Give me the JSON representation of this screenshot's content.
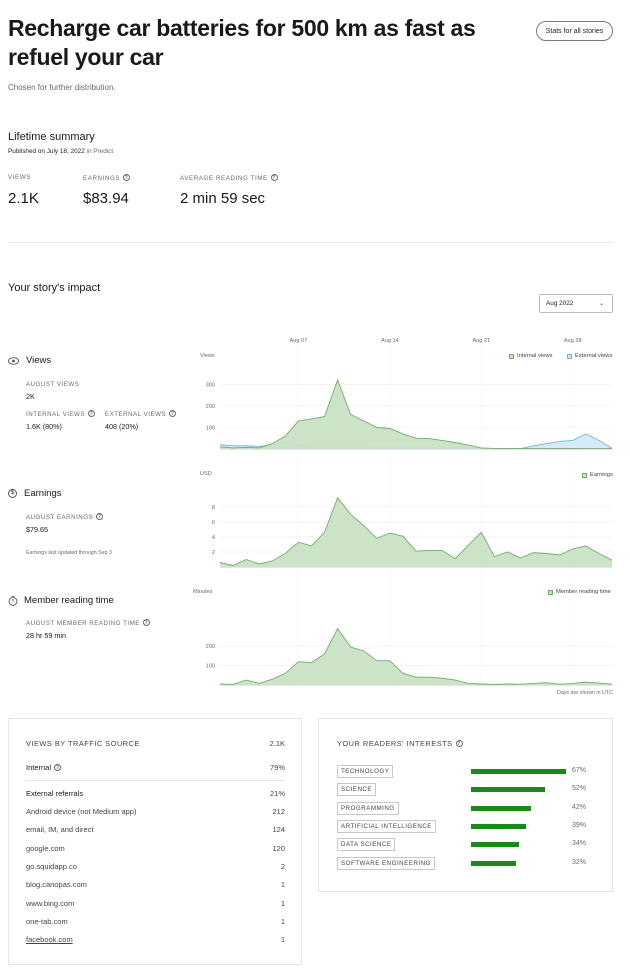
{
  "header": {
    "title": "Recharge car batteries for 500 km as fast as refuel your car",
    "subtitle": "Chosen for further distribution.",
    "stats_button": "Stats for all stories"
  },
  "summary": {
    "heading": "Lifetime summary",
    "published": "Published on July 18, 2022",
    "published_in": "in Predict",
    "views_label": "VIEWS",
    "views_value": "2.1K",
    "earnings_label": "EARNINGS",
    "earnings_value": "$83.94",
    "reading_label": "AVERAGE READING TIME",
    "reading_value": "2 min 59 sec"
  },
  "impact": {
    "heading": "Your story's impact",
    "month_select": "Aug 2022",
    "x_ticks": [
      "Aug 07",
      "Aug 14",
      "Aug 21",
      "Aug 28"
    ],
    "footer_note": "Days are shown in UTC"
  },
  "views": {
    "name": "Views",
    "month_label": "AUGUST VIEWS",
    "month_value": "2K",
    "internal_label": "INTERNAL VIEWS",
    "internal_value": "1.6K (80%)",
    "external_label": "EXTERNAL VIEWS",
    "external_value": "408 (20%)"
  },
  "earnings": {
    "name": "Earnings",
    "month_label": "AUGUST EARNINGS",
    "month_value": "$79.65",
    "note": "Earnings last updated through Sep 3"
  },
  "reading": {
    "name": "Member reading time",
    "month_label": "AUGUST MEMBER READING TIME",
    "month_value": "28 hr 59 min"
  },
  "colors": {
    "internal_fill": "#c9e2c4",
    "internal_line": "#6fae69",
    "external_fill": "#cfe7f5",
    "external_line": "#6fb6de",
    "bar_green": "#1a8917"
  },
  "chart_data": [
    {
      "type": "area",
      "ylabel": "Views",
      "y_ticks": [
        "300",
        "200",
        "100"
      ],
      "ylim": [
        0,
        380
      ],
      "x": [
        1,
        2,
        3,
        4,
        5,
        6,
        7,
        8,
        9,
        10,
        11,
        12,
        13,
        14,
        15,
        16,
        17,
        18,
        19,
        20,
        21,
        22,
        23,
        24,
        25,
        26,
        27,
        28,
        29,
        30,
        31
      ],
      "series": [
        {
          "name": "Internal views",
          "values": [
            10,
            5,
            8,
            5,
            25,
            60,
            130,
            140,
            150,
            320,
            160,
            130,
            100,
            95,
            70,
            50,
            48,
            40,
            30,
            18,
            5,
            3,
            3,
            2,
            2,
            2,
            3,
            3,
            2,
            2,
            2
          ]
        },
        {
          "name": "External views",
          "values": [
            20,
            15,
            15,
            12,
            20,
            30,
            20,
            10,
            10,
            10,
            10,
            10,
            5,
            5,
            5,
            5,
            5,
            5,
            5,
            4,
            2,
            2,
            2,
            2,
            15,
            25,
            35,
            40,
            70,
            40,
            3
          ]
        }
      ]
    },
    {
      "type": "area",
      "ylabel": "USD",
      "y_ticks": [
        "8",
        "6",
        "4",
        "2"
      ],
      "ylim": [
        0,
        10.5
      ],
      "x": [
        1,
        2,
        3,
        4,
        5,
        6,
        7,
        8,
        9,
        10,
        11,
        12,
        13,
        14,
        15,
        16,
        17,
        18,
        19,
        20,
        21,
        22,
        23,
        24,
        25,
        26,
        27,
        28,
        29,
        30,
        31
      ],
      "series": [
        {
          "name": "Earnings",
          "values": [
            0.6,
            0.2,
            1.0,
            0.4,
            0.8,
            1.8,
            3.3,
            2.8,
            4.6,
            9.2,
            7.0,
            5.5,
            3.8,
            4.5,
            4.1,
            2.1,
            2.2,
            2.2,
            1.1,
            2.9,
            4.6,
            1.4,
            2.0,
            1.2,
            1.9,
            1.8,
            1.6,
            2.4,
            2.8,
            1.8,
            0.9
          ]
        }
      ]
    },
    {
      "type": "area",
      "ylabel": "Minutes",
      "y_ticks": [
        "200",
        "100"
      ],
      "ylim": [
        0,
        360
      ],
      "x": [
        1,
        2,
        3,
        4,
        5,
        6,
        7,
        8,
        9,
        10,
        11,
        12,
        13,
        14,
        15,
        16,
        17,
        18,
        19,
        20,
        21,
        22,
        23,
        24,
        25,
        26,
        27,
        28,
        29,
        30,
        31
      ],
      "series": [
        {
          "name": "Member reading time",
          "values": [
            5,
            3,
            25,
            8,
            30,
            60,
            120,
            115,
            160,
            290,
            195,
            175,
            125,
            125,
            60,
            40,
            40,
            35,
            25,
            8,
            5,
            3,
            5,
            4,
            8,
            12,
            4,
            8,
            15,
            10,
            4
          ]
        }
      ]
    },
    {
      "type": "table",
      "title": "VIEWS BY TRAFFIC SOURCE",
      "total": "2.1K",
      "internal": {
        "label": "Internal",
        "value": "79%"
      },
      "external": {
        "label": "External referrals",
        "value": "21%"
      },
      "rows": [
        {
          "label": "Android device (not Medium app)",
          "value": "212"
        },
        {
          "label": "email, IM, and direct",
          "value": "124"
        },
        {
          "label": "google.com",
          "value": "120"
        },
        {
          "label": "go.squidapp.co",
          "value": "2"
        },
        {
          "label": "blog.canopas.com",
          "value": "1"
        },
        {
          "label": "www.bing.com",
          "value": "1"
        },
        {
          "label": "one-tab.com",
          "value": "1"
        },
        {
          "label": "facebook.com",
          "value": "1"
        }
      ]
    },
    {
      "type": "bar",
      "title": "YOUR READERS' INTERESTS",
      "categories": [
        "TECHNOLOGY",
        "SCIENCE",
        "PROGRAMMING",
        "ARTIFICIAL INTELLIGENCE",
        "DATA SCIENCE",
        "SOFTWARE ENGINEERING"
      ],
      "values": [
        67,
        52,
        42,
        39,
        34,
        32
      ],
      "labels": [
        "67%",
        "52%",
        "42%",
        "39%",
        "34%",
        "32%"
      ]
    }
  ]
}
